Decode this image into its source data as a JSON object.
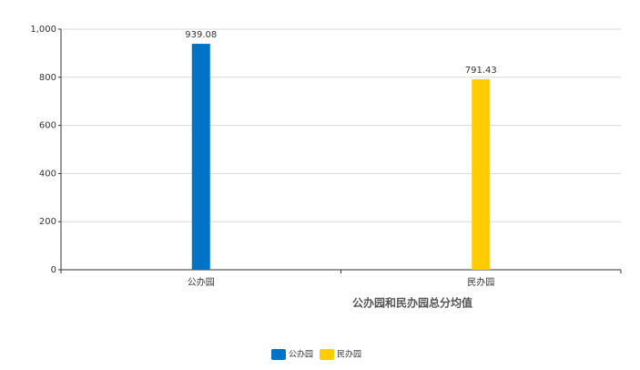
{
  "chart_data": {
    "type": "bar",
    "x_label": "公办园和民办园总分均值",
    "categories": [
      "公办园",
      "民办园"
    ],
    "values": [
      939.08,
      791.43
    ],
    "colors": [
      "#0073c6",
      "#ffcc00"
    ],
    "ylim": [
      0,
      1000
    ],
    "yticks": [
      0,
      200,
      400,
      600,
      800,
      {
        "value": 1000,
        "label": "1,000"
      }
    ],
    "grid": true,
    "legend": "bottom"
  }
}
